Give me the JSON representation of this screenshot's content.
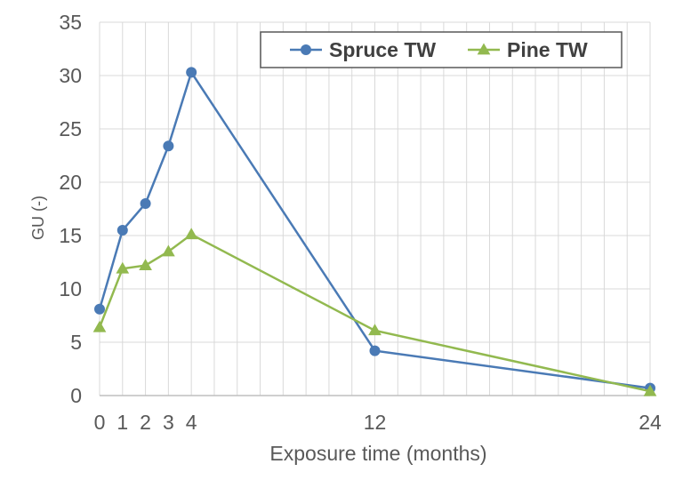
{
  "chart_data": {
    "type": "line",
    "title": "",
    "xlabel": "Exposure time (months)",
    "ylabel": "GU (-)",
    "xlim": [
      0,
      24
    ],
    "ylim": [
      0,
      35
    ],
    "y_ticks": [
      0,
      5,
      10,
      15,
      20,
      25,
      30,
      35
    ],
    "x_ticks": [
      0,
      1,
      2,
      3,
      4,
      12,
      24
    ],
    "x_ticks_labels": [
      "0",
      "1",
      "2",
      "3",
      "4",
      "12",
      "24"
    ],
    "grid": true,
    "legend_position": "top-right",
    "series": [
      {
        "name": "Spruce TW",
        "marker": "circle",
        "color": "#4a7ab5",
        "x": [
          0,
          1,
          2,
          3,
          4,
          12,
          24
        ],
        "y": [
          8.1,
          15.5,
          18.0,
          23.4,
          30.3,
          4.2,
          0.7
        ]
      },
      {
        "name": "Pine TW",
        "marker": "triangle",
        "color": "#92b94f",
        "x": [
          0,
          1,
          2,
          3,
          4,
          12,
          24
        ],
        "y": [
          6.4,
          11.9,
          12.2,
          13.5,
          15.1,
          6.1,
          0.4
        ]
      }
    ]
  }
}
